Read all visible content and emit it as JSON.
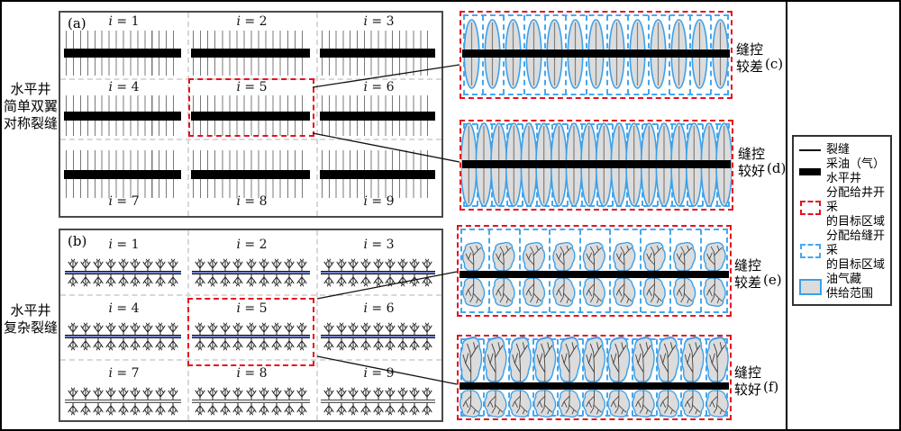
{
  "figure": {
    "panels": {
      "a": {
        "letter": "(a)",
        "side_label": "水平井\n简单双翼\n对称裂缝",
        "cells": [
          "i = 1",
          "i = 2",
          "i = 3",
          "i = 4",
          "i = 5",
          "i = 6",
          "i = 7",
          "i = 8",
          "i = 9"
        ],
        "highlight_index": 4,
        "fracture_count": 16
      },
      "b": {
        "letter": "(b)",
        "side_label": "水平井\n复杂裂缝",
        "cells": [
          "i = 1",
          "i = 2",
          "i = 3",
          "i = 4",
          "i = 5",
          "i = 6",
          "i = 7",
          "i = 8",
          "i = 9"
        ],
        "highlight_index": 4,
        "tree_count": 9
      }
    },
    "details": [
      {
        "id": "c",
        "letter": "(c)",
        "caption": "缝控\n较差",
        "shape": "ellipse",
        "count": 13
      },
      {
        "id": "d",
        "letter": "(d)",
        "caption": "缝控\n较好",
        "shape": "ellipse",
        "count": 18
      },
      {
        "id": "e",
        "letter": "(e)",
        "caption": "缝控\n较差",
        "shape": "blob",
        "count": 9
      },
      {
        "id": "f",
        "letter": "(f)",
        "caption": "缝控\n较好",
        "shape": "blob",
        "count": 11
      }
    ],
    "legend": {
      "items": [
        {
          "swatch": "fracture-line",
          "label": "裂缝"
        },
        {
          "swatch": "well-bar",
          "label": "采油（气）\n水平井"
        },
        {
          "swatch": "well-target-region",
          "label": "分配给井开采\n的目标区域"
        },
        {
          "swatch": "fracture-target-region",
          "label": "分配给缝开采\n的目标区域"
        },
        {
          "swatch": "supply-area",
          "label": "油气藏\n供给范围"
        }
      ]
    },
    "colors": {
      "well": "#000000",
      "fracture": "#787878",
      "well_target_region": "#e8101e",
      "fracture_target_region": "#45a7ef",
      "supply_fill": "#dcdcdc",
      "supply_stroke": "#3da0e8",
      "complex_well_fill": "#7583c6"
    }
  }
}
